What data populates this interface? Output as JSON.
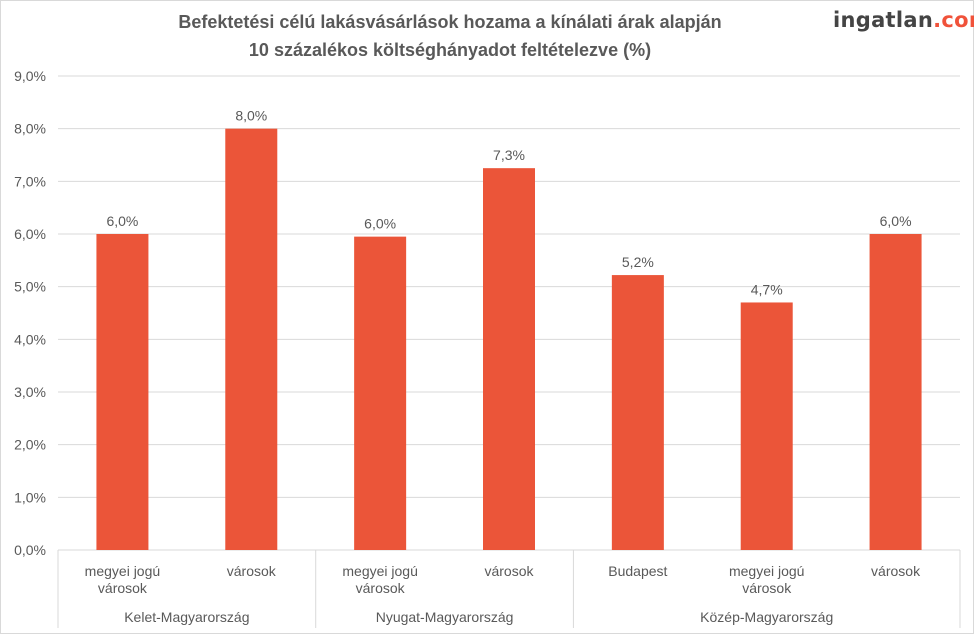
{
  "logo": {
    "name": "ingatlan",
    "tld": ".com"
  },
  "chart_data": {
    "type": "bar",
    "title": "Befektetési célú lakásvásárlások hozama a kínálati árak alapján",
    "subtitle": "10 százalékos költséghányadot feltételezve (%)",
    "xlabel": "",
    "ylabel": "",
    "ylim": [
      0,
      9
    ],
    "yticks": [
      "0,0%",
      "1,0%",
      "2,0%",
      "3,0%",
      "4,0%",
      "5,0%",
      "6,0%",
      "7,0%",
      "8,0%",
      "9,0%"
    ],
    "grid": true,
    "bar_color": "#eb5539",
    "groups": [
      {
        "label": "Kelet-Magyarország",
        "categories": [
          [
            "megyei jogú",
            "városok"
          ],
          [
            "városok"
          ]
        ],
        "values": [
          6.0,
          8.0
        ],
        "labels": [
          "6,0%",
          "8,0%"
        ]
      },
      {
        "label": "Nyugat-Magyarország",
        "categories": [
          [
            "megyei jogú",
            "városok"
          ],
          [
            "városok"
          ]
        ],
        "values": [
          5.95,
          7.25
        ],
        "labels": [
          "6,0%",
          "7,3%"
        ]
      },
      {
        "label": "Közép-Magyarország",
        "categories": [
          [
            "Budapest"
          ],
          [
            "megyei jogú",
            "városok"
          ],
          [
            "városok"
          ]
        ],
        "values": [
          5.22,
          4.7,
          6.0
        ],
        "labels": [
          "5,2%",
          "4,7%",
          "6,0%"
        ]
      }
    ]
  }
}
